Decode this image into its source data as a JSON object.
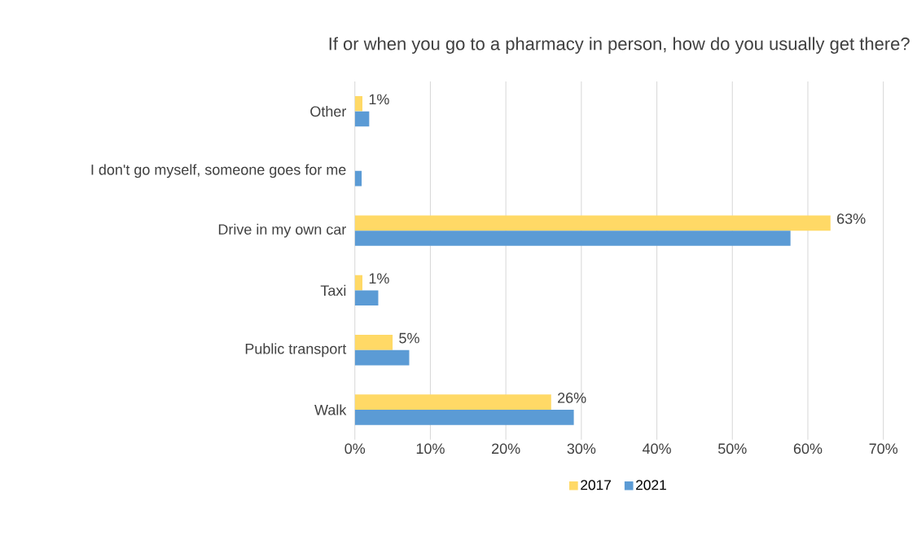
{
  "chart_data": {
    "type": "bar",
    "orientation": "horizontal",
    "title": "If or when you go to a pharmacy in person, how do you usually get there?",
    "categories": [
      "Other",
      "I don't go myself, someone goes for me",
      "Drive in my own car",
      "Taxi",
      "Public transport",
      "Walk"
    ],
    "series": [
      {
        "name": "2017",
        "color": "#ffd966",
        "values": [
          1,
          null,
          63,
          1,
          5,
          26
        ],
        "value_labels": [
          "1%",
          null,
          "63%",
          "1%",
          "5%",
          "26%"
        ]
      },
      {
        "name": "2021",
        "color": "#5b9bd5",
        "values": [
          1.9,
          0.9,
          57.7,
          3.1,
          7.2,
          29.0
        ]
      }
    ],
    "xlim": [
      0,
      70
    ],
    "xticks": [
      {
        "value": 0,
        "label": "0%"
      },
      {
        "value": 10,
        "label": "10%"
      },
      {
        "value": 20,
        "label": "20%"
      },
      {
        "value": 30,
        "label": "30%"
      },
      {
        "value": 40,
        "label": "40%"
      },
      {
        "value": 50,
        "label": "50%"
      },
      {
        "value": 60,
        "label": "60%"
      },
      {
        "value": 70,
        "label": "70%"
      }
    ],
    "grid": "x",
    "legend": "bottom"
  }
}
